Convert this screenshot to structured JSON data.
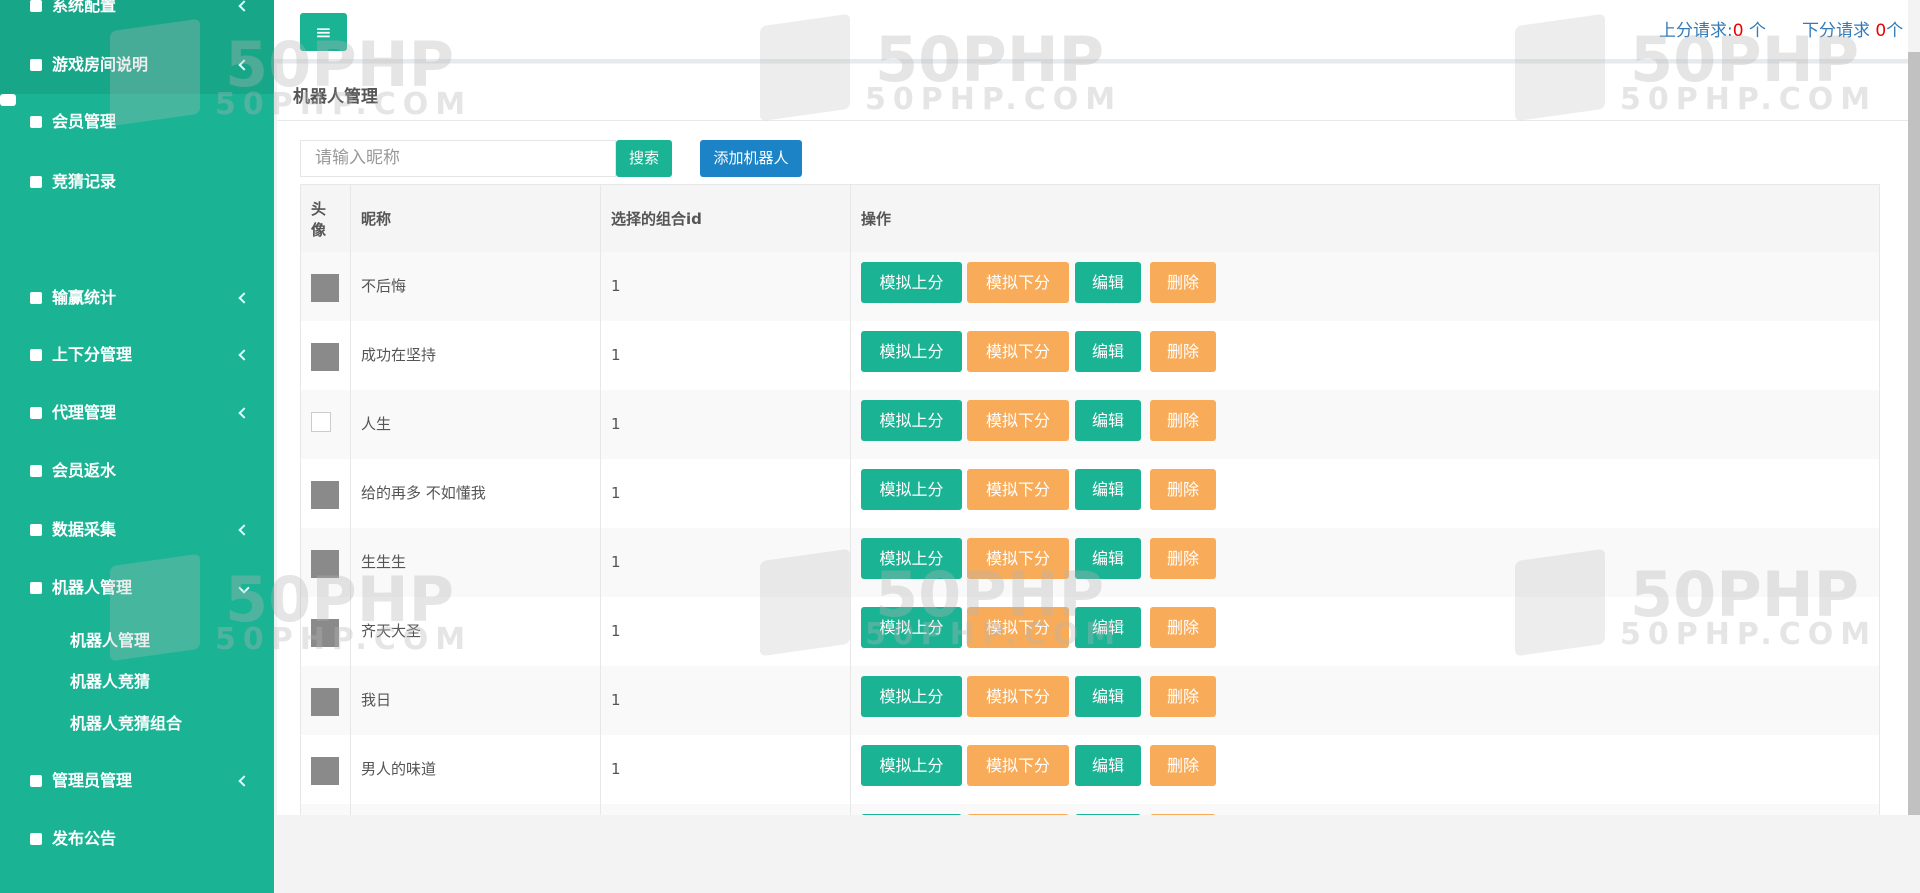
{
  "sidebar": {
    "items": [
      "系统配置",
      "游戏房间说明",
      "会员管理",
      "竞猜记录",
      "输赢统计",
      "上下分管理",
      "代理管理",
      "会员返水",
      "数据采集",
      "机器人管理",
      "管理员管理",
      "发布公告"
    ],
    "submenu": [
      "机器人管理",
      "机器人竞猜",
      "机器人竞猜组合"
    ]
  },
  "header": {
    "up_label": "上分请求:",
    "up_count": "0",
    "up_unit": "个",
    "down_label": "下分请求",
    "down_count": "0",
    "down_unit": "个"
  },
  "watermark": {
    "big": "50PHP",
    "small": "50PHP.COM"
  },
  "panel": {
    "title": "机器人管理",
    "search_placeholder": "请输入昵称",
    "search_button": "搜索",
    "add_button": "添加机器人"
  },
  "table": {
    "headers": [
      "头像",
      "昵称",
      "选择的组合id",
      "操作"
    ],
    "actions": [
      "模拟上分",
      "模拟下分",
      "编辑",
      "删除"
    ],
    "rows": [
      [
        "不后悔",
        "1"
      ],
      [
        "成功在坚持",
        "1"
      ],
      [
        "人生",
        "1"
      ],
      [
        "给的再多 不如懂我",
        "1"
      ],
      [
        "生生生",
        "1"
      ],
      [
        "齐天大圣",
        "1"
      ],
      [
        "我日",
        "1"
      ],
      [
        "男人的味道",
        "1"
      ]
    ]
  }
}
